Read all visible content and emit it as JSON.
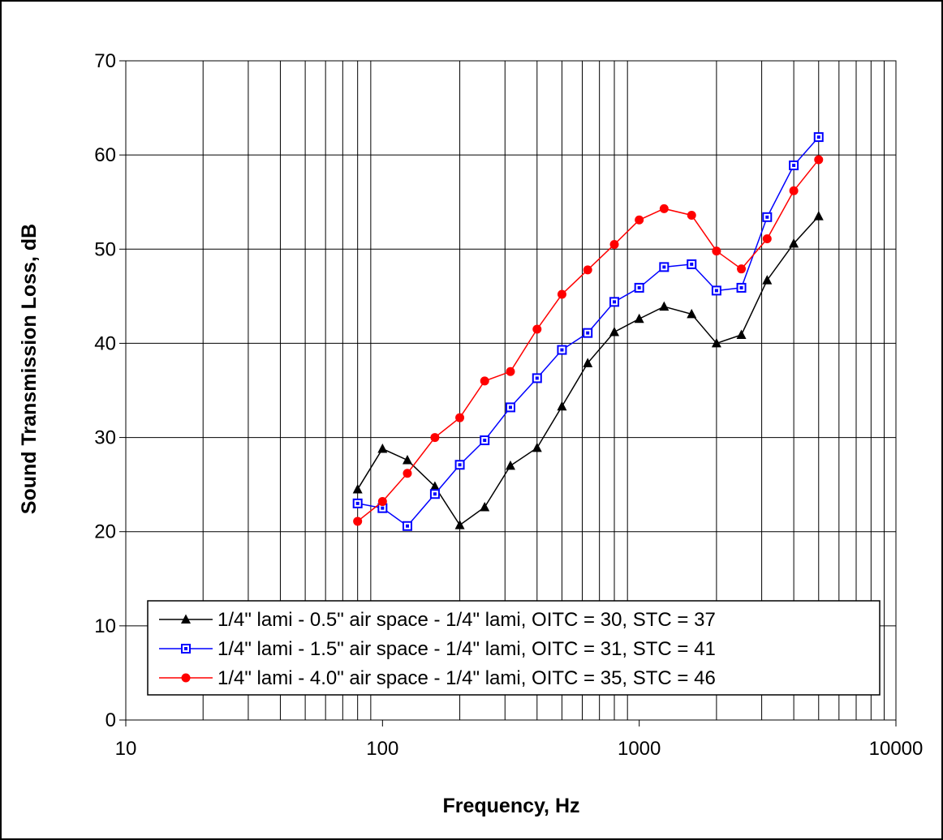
{
  "chart_data": {
    "type": "line",
    "xlabel": "Frequency, Hz",
    "ylabel": "Sound Transmission Loss, dB",
    "x_scale": "log",
    "xlim": [
      10,
      10000
    ],
    "ylim": [
      0,
      70
    ],
    "x_ticks": [
      "10",
      "100",
      "1000",
      "10000"
    ],
    "y_ticks": [
      "0",
      "10",
      "20",
      "30",
      "40",
      "50",
      "60",
      "70"
    ],
    "grid": true,
    "legend_position": "bottom-right",
    "x": [
      80,
      100,
      125,
      160,
      200,
      250,
      315,
      400,
      500,
      630,
      800,
      1000,
      1250,
      1600,
      2000,
      2500,
      3150,
      4000,
      5000
    ],
    "series": [
      {
        "name": "1/4\" lami - 0.5\" air space - 1/4\" lami, OITC = 30, STC = 37",
        "color": "#000000",
        "marker": "triangle",
        "values": [
          24.5,
          28.8,
          27.6,
          24.8,
          20.7,
          22.6,
          27.0,
          28.9,
          33.3,
          37.9,
          41.2,
          42.6,
          43.9,
          43.1,
          40.0,
          40.9,
          46.7,
          50.6,
          53.5
        ]
      },
      {
        "name": "1/4\" lami - 1.5\" air space - 1/4\" lami, OITC = 31, STC = 41",
        "color": "#0000ff",
        "marker": "square",
        "values": [
          23.0,
          22.5,
          20.6,
          24.0,
          27.1,
          29.7,
          33.2,
          36.3,
          39.3,
          41.1,
          44.4,
          45.9,
          48.1,
          48.4,
          45.6,
          45.9,
          53.4,
          58.9,
          61.9
        ]
      },
      {
        "name": "1/4\" lami - 4.0\" air space - 1/4\" lami, OITC = 35, STC = 46",
        "color": "#ff0000",
        "marker": "circle",
        "values": [
          21.1,
          23.2,
          26.2,
          30.0,
          32.1,
          36.0,
          37.0,
          41.5,
          45.2,
          47.8,
          50.5,
          53.1,
          54.3,
          53.6,
          49.8,
          47.9,
          51.1,
          56.2,
          59.5
        ]
      }
    ]
  }
}
